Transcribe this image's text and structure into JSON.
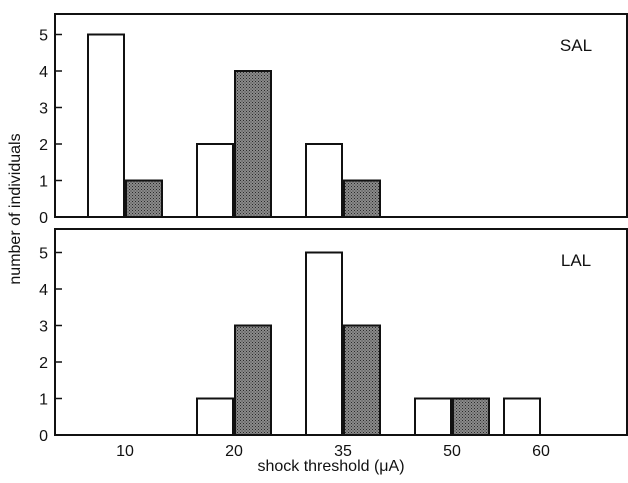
{
  "chart_data": {
    "type": "bar",
    "xlabel": "shock threshold (μA)",
    "ylabel": "number of individuals",
    "categories": [
      "10",
      "20",
      "35",
      "50",
      "60"
    ],
    "ylim": [
      0,
      5.5
    ],
    "yticks": [
      0,
      1,
      2,
      3,
      4,
      5
    ],
    "colors": {
      "open": "#ffffff",
      "shaded": "#555555",
      "edge": "#111111"
    },
    "panels": [
      {
        "label": "SAL",
        "series": [
          {
            "fill": "open",
            "values": [
              5,
              2,
              2,
              0,
              0
            ]
          },
          {
            "fill": "shaded",
            "values": [
              1,
              4,
              1,
              0,
              0
            ]
          }
        ]
      },
      {
        "label": "LAL",
        "series": [
          {
            "fill": "open",
            "values": [
              0,
              1,
              5,
              1,
              1
            ]
          },
          {
            "fill": "shaded",
            "values": [
              0,
              3,
              3,
              1,
              0
            ]
          }
        ]
      }
    ]
  }
}
